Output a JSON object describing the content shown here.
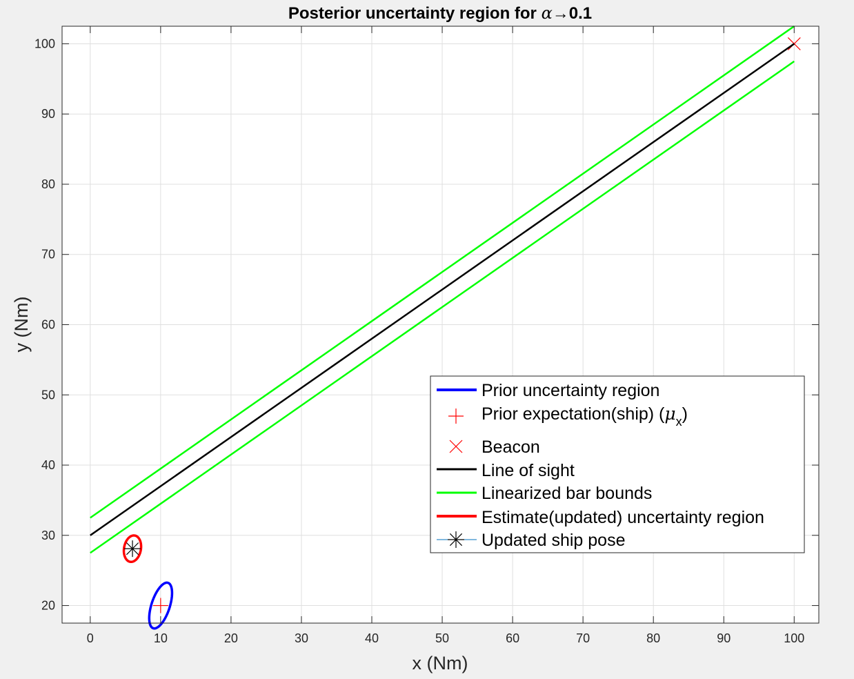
{
  "chart_data": {
    "type": "line",
    "title": {
      "prefix": "Posterior uncertainty region for ",
      "symbol": "α",
      "arrow": "→",
      "value": "0.1"
    },
    "xlabel": "x (Nm)",
    "ylabel": "y (Nm)",
    "xlim": [
      -4,
      103.5
    ],
    "ylim": [
      17.5,
      102.5
    ],
    "xticks": [
      0,
      10,
      20,
      30,
      40,
      50,
      60,
      70,
      80,
      90,
      100
    ],
    "yticks": [
      20,
      30,
      40,
      50,
      60,
      70,
      80,
      90,
      100
    ],
    "grid": true,
    "legend_location": "east",
    "series": [
      {
        "name": "Prior uncertainty region",
        "kind": "ellipse",
        "color": "#0000ff",
        "center": [
          10,
          20
        ],
        "semi_axes": [
          3.4,
          1.3
        ],
        "angle_deg": 72
      },
      {
        "name": "Prior expectation(ship) (",
        "name_symbol": "μ",
        "name_subscript": "x",
        "name_suffix": ")",
        "kind": "marker",
        "marker": "plus",
        "color": "#ff0000",
        "x": [
          10
        ],
        "y": [
          20
        ]
      },
      {
        "name": "Beacon",
        "kind": "marker",
        "marker": "cross",
        "color": "#ff0000",
        "x": [
          100
        ],
        "y": [
          100
        ]
      },
      {
        "name": "Line of sight",
        "kind": "line",
        "color": "#000000",
        "x": [
          0,
          100
        ],
        "y": [
          30,
          100
        ]
      },
      {
        "name": "Linearized bar bounds",
        "kind": "line",
        "color": "#00ff00",
        "lines": [
          {
            "x": [
              0,
              100
            ],
            "y": [
              32.5,
              102.5
            ]
          },
          {
            "x": [
              0,
              100
            ],
            "y": [
              27.5,
              97.5
            ]
          }
        ]
      },
      {
        "name": "Estimate(updated) uncertainty region",
        "kind": "ellipse",
        "color": "#ff0000",
        "center": [
          6,
          28.1
        ],
        "semi_axes": [
          1.9,
          1.2
        ],
        "angle_deg": 80
      },
      {
        "name": "Updated ship pose",
        "kind": "marker",
        "marker": "asterisk",
        "color": "#000000",
        "line_color": "#0072bd",
        "x": [
          6
        ],
        "y": [
          28.1
        ]
      }
    ]
  }
}
